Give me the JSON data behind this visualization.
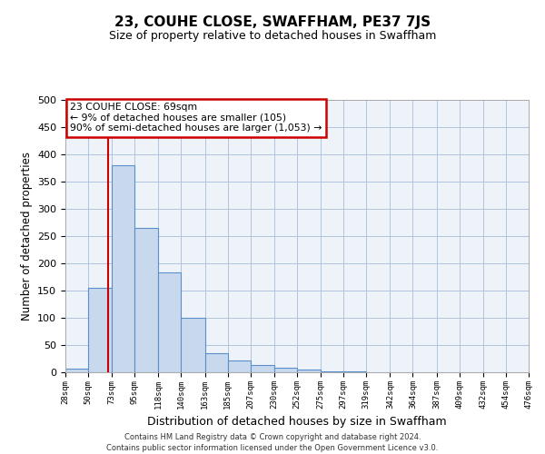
{
  "title": "23, COUHE CLOSE, SWAFFHAM, PE37 7JS",
  "subtitle": "Size of property relative to detached houses in Swaffham",
  "xlabel": "Distribution of detached houses by size in Swaffham",
  "ylabel": "Number of detached properties",
  "footer_lines": [
    "Contains HM Land Registry data © Crown copyright and database right 2024.",
    "Contains public sector information licensed under the Open Government Licence v3.0."
  ],
  "bin_labels": [
    "28sqm",
    "50sqm",
    "73sqm",
    "95sqm",
    "118sqm",
    "140sqm",
    "163sqm",
    "185sqm",
    "207sqm",
    "230sqm",
    "252sqm",
    "275sqm",
    "297sqm",
    "319sqm",
    "342sqm",
    "364sqm",
    "387sqm",
    "409sqm",
    "432sqm",
    "454sqm",
    "476sqm"
  ],
  "bar_heights": [
    6,
    155,
    380,
    265,
    183,
    100,
    35,
    21,
    13,
    9,
    5,
    2,
    1,
    0,
    0,
    0,
    0,
    0,
    0,
    0
  ],
  "bar_color": "#c9d9ed",
  "bar_edge_color": "#5b8fc9",
  "grid_color": "#b0c4de",
  "background_color": "#eef3fa",
  "vline_x": 69,
  "vline_color": "#cc0000",
  "annotation_title": "23 COUHE CLOSE: 69sqm",
  "annotation_line1": "← 9% of detached houses are smaller (105)",
  "annotation_line2": "90% of semi-detached houses are larger (1,053) →",
  "annotation_box_color": "#cc0000",
  "ylim": [
    0,
    500
  ],
  "bin_edges": [
    28,
    50,
    73,
    95,
    118,
    140,
    163,
    185,
    207,
    230,
    252,
    275,
    297,
    319,
    342,
    364,
    387,
    409,
    432,
    454,
    476
  ]
}
